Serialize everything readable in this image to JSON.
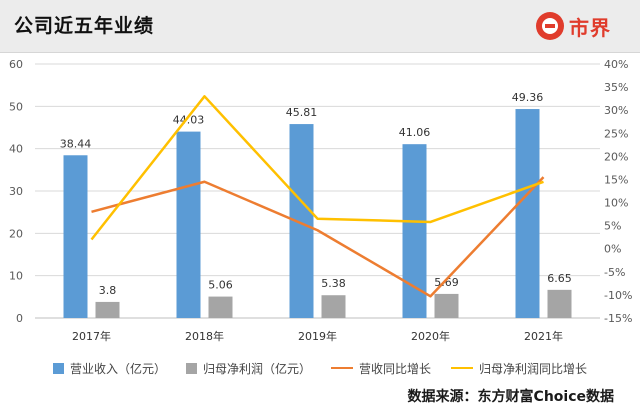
{
  "title": "公司近五年业绩",
  "logo_text": "市界",
  "source": "数据来源：东方财富Choice数据",
  "chart_data": {
    "type": "bar",
    "categories": [
      "2017年",
      "2018年",
      "2019年",
      "2020年",
      "2021年"
    ],
    "series": [
      {
        "name": "营业收入（亿元）",
        "kind": "bar",
        "axis": "left",
        "color": "#5b9bd5",
        "values": [
          38.44,
          44.03,
          45.81,
          41.06,
          49.36
        ],
        "labels": [
          "38.44",
          "44.03",
          "45.81",
          "41.06",
          "49.36"
        ]
      },
      {
        "name": "归母净利润（亿元）",
        "kind": "bar",
        "axis": "left",
        "color": "#a5a5a5",
        "values": [
          3.8,
          5.06,
          5.38,
          5.69,
          6.65
        ],
        "labels": [
          "3.8",
          "5.06",
          "5.38",
          "5.69",
          "6.65"
        ]
      },
      {
        "name": "营收同比增长",
        "kind": "line",
        "axis": "right",
        "color": "#ed7d31",
        "values": [
          8,
          14.5,
          4,
          -10.3,
          15.5
        ]
      },
      {
        "name": "归母净利润同比增长",
        "kind": "line",
        "axis": "right",
        "color": "#ffc000",
        "values": [
          2,
          33,
          6.5,
          5.8,
          14.5
        ]
      }
    ],
    "y_left": {
      "min": 0,
      "max": 60,
      "ticks": [
        "0",
        "10",
        "20",
        "30",
        "40",
        "50",
        "60"
      ]
    },
    "y_right": {
      "min": -15,
      "max": 40,
      "ticks": [
        "-15%",
        "-10%",
        "-5%",
        "0%",
        "5%",
        "10%",
        "15%",
        "20%",
        "25%",
        "30%",
        "35%",
        "40%"
      ]
    },
    "grid": true,
    "legend_position": "bottom"
  }
}
